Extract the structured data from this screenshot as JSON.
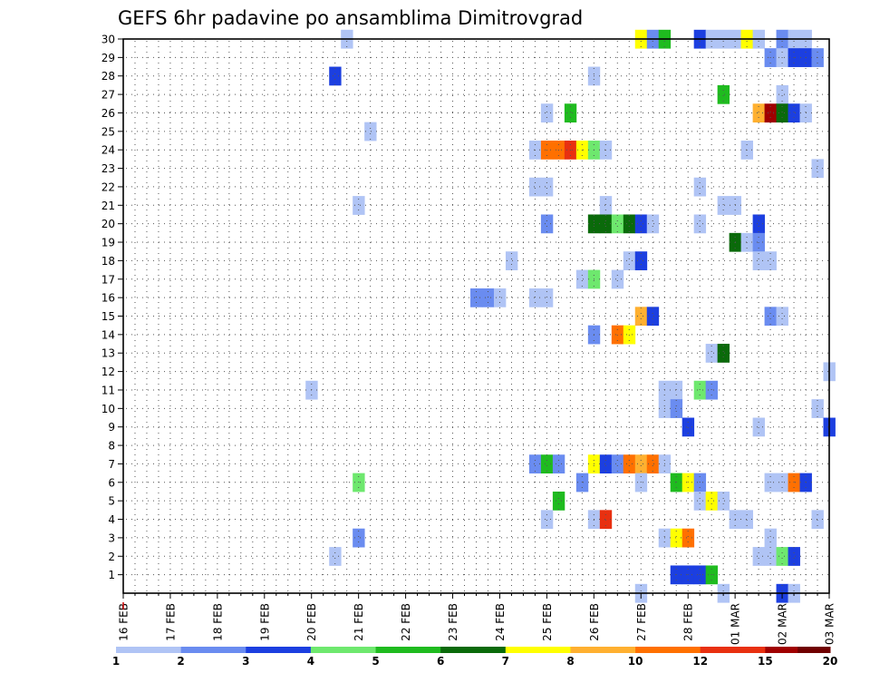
{
  "chart_data": {
    "type": "heatmap",
    "title": "GEFS 6hr padavine po ansamblima Dimitrovgrad",
    "xlabel": "",
    "ylabel": "",
    "x_tick_labels": [
      "16 FEB",
      "17 FEB",
      "18 FEB",
      "19 FEB",
      "20 FEB",
      "21 FEB",
      "22 FEB",
      "23 FEB",
      "24 FEB",
      "25 FEB",
      "26 FEB",
      "27 FEB",
      "28 FEB",
      "01 MAR",
      "02 MAR",
      "03 MAR"
    ],
    "x_unit": "6-hour step from 16 FEB 00Z",
    "xlim": [
      0,
      60
    ],
    "y_tick_labels": [
      "1",
      "2",
      "3",
      "4",
      "5",
      "6",
      "7",
      "8",
      "9",
      "10",
      "11",
      "12",
      "13",
      "14",
      "15",
      "16",
      "17",
      "18",
      "19",
      "20",
      "21",
      "22",
      "23",
      "24",
      "25",
      "26",
      "27",
      "28",
      "29",
      "30"
    ],
    "ylim": [
      0,
      30
    ],
    "grid": true,
    "legend": {
      "placement": "bottom",
      "boundary_labels": [
        "1",
        "2",
        "3",
        "4",
        "5",
        "6",
        "7",
        "8",
        "10",
        "12",
        "15",
        "20"
      ],
      "colors": [
        "#b0c4f5",
        "#b0c4f5",
        "#6a8cf0",
        "#6a8cf0",
        "#1c3fe0",
        "#1c3fe0",
        "#6ee86e",
        "#6ee86e",
        "#1fbb1f",
        "#1fbb1f",
        "#0a6a0a",
        "#0a6a0a",
        "#ffff00",
        "#ffff00",
        "#ffb030",
        "#ffb030",
        "#ff7000",
        "#ff7000",
        "#e83010",
        "#e83010",
        "#a00000",
        "#700000"
      ]
    },
    "level_colors": {
      "1": "#b0c4f5",
      "2": "#6a8cf0",
      "3": "#1c3fe0",
      "4": "#6ee86e",
      "5": "#1fbb1f",
      "6": "#0a6a0a",
      "7": "#ffff00",
      "8": "#ffb030",
      "9": "#ff7000",
      "10": "#e83010",
      "11": "#a00000",
      "12": "#700000"
    },
    "cells": [
      {
        "m": 30,
        "t": [
          [
            19,
            1
          ]
        ]
      },
      {
        "m": 30,
        "t": [
          [
            44,
            7
          ],
          [
            45,
            2
          ],
          [
            46,
            5
          ],
          [
            49,
            3
          ],
          [
            50,
            1
          ],
          [
            51,
            1
          ],
          [
            52,
            1
          ],
          [
            53,
            7
          ],
          [
            54,
            1
          ],
          [
            56,
            2
          ],
          [
            57,
            1
          ],
          [
            58,
            1
          ]
        ]
      },
      {
        "m": 29,
        "t": [
          [
            55,
            2
          ],
          [
            56,
            1
          ],
          [
            57,
            3
          ],
          [
            58,
            3
          ],
          [
            59,
            2
          ]
        ]
      },
      {
        "m": 28,
        "t": [
          [
            18,
            3
          ],
          [
            40,
            1
          ]
        ]
      },
      {
        "m": 27,
        "t": [
          [
            51,
            5
          ],
          [
            56,
            1
          ]
        ]
      },
      {
        "m": 26,
        "t": [
          [
            36,
            1
          ],
          [
            38,
            5
          ],
          [
            54,
            8
          ],
          [
            55,
            11
          ],
          [
            56,
            6
          ],
          [
            57,
            3
          ],
          [
            58,
            1
          ]
        ]
      },
      {
        "m": 25,
        "t": [
          [
            21,
            1
          ]
        ]
      },
      {
        "m": 24,
        "t": [
          [
            35,
            1
          ],
          [
            36,
            9
          ],
          [
            37,
            9
          ],
          [
            38,
            10
          ],
          [
            39,
            7
          ],
          [
            40,
            4
          ],
          [
            41,
            1
          ],
          [
            53,
            1
          ]
        ]
      },
      {
        "m": 23,
        "t": [
          [
            59,
            1
          ]
        ]
      },
      {
        "m": 22,
        "t": [
          [
            35,
            1
          ],
          [
            36,
            1
          ],
          [
            49,
            1
          ]
        ]
      },
      {
        "m": 21,
        "t": [
          [
            20,
            1
          ],
          [
            41,
            1
          ],
          [
            51,
            1
          ],
          [
            52,
            1
          ]
        ]
      },
      {
        "m": 20,
        "t": [
          [
            36,
            2
          ],
          [
            40,
            6
          ],
          [
            41,
            6
          ],
          [
            42,
            4
          ],
          [
            43,
            6
          ],
          [
            44,
            3
          ],
          [
            45,
            1
          ],
          [
            49,
            1
          ],
          [
            54,
            3
          ]
        ]
      },
      {
        "m": 19,
        "t": [
          [
            52,
            6
          ],
          [
            53,
            1
          ],
          [
            54,
            2
          ]
        ]
      },
      {
        "m": 18,
        "t": [
          [
            33,
            1
          ],
          [
            43,
            1
          ],
          [
            44,
            3
          ],
          [
            54,
            1
          ],
          [
            55,
            1
          ]
        ]
      },
      {
        "m": 17,
        "t": [
          [
            39,
            1
          ],
          [
            40,
            4
          ],
          [
            42,
            1
          ]
        ]
      },
      {
        "m": 16,
        "t": [
          [
            30,
            2
          ],
          [
            31,
            2
          ],
          [
            32,
            1
          ],
          [
            35,
            1
          ],
          [
            36,
            1
          ]
        ]
      },
      {
        "m": 15,
        "t": [
          [
            44,
            8
          ],
          [
            45,
            3
          ],
          [
            55,
            2
          ],
          [
            56,
            1
          ]
        ]
      },
      {
        "m": 14,
        "t": [
          [
            40,
            2
          ],
          [
            42,
            9
          ],
          [
            43,
            7
          ]
        ]
      },
      {
        "m": 13,
        "t": [
          [
            50,
            1
          ],
          [
            51,
            6
          ]
        ]
      },
      {
        "m": 12,
        "t": [
          [
            60,
            1
          ]
        ]
      },
      {
        "m": 11,
        "t": [
          [
            16,
            1
          ],
          [
            46,
            1
          ],
          [
            47,
            1
          ],
          [
            49,
            4
          ],
          [
            50,
            2
          ]
        ]
      },
      {
        "m": 10,
        "t": [
          [
            46,
            1
          ],
          [
            47,
            2
          ],
          [
            59,
            1
          ]
        ]
      },
      {
        "m": 9,
        "t": [
          [
            48,
            3
          ],
          [
            54,
            1
          ],
          [
            60,
            3
          ]
        ]
      },
      {
        "m": 7,
        "t": [
          [
            35,
            2
          ],
          [
            36,
            5
          ],
          [
            37,
            2
          ],
          [
            40,
            7
          ],
          [
            41,
            3
          ],
          [
            42,
            2
          ],
          [
            43,
            9
          ],
          [
            44,
            8
          ],
          [
            45,
            9
          ],
          [
            46,
            1
          ]
        ]
      },
      {
        "m": 6,
        "t": [
          [
            20,
            4
          ],
          [
            39,
            2
          ],
          [
            44,
            1
          ],
          [
            47,
            5
          ],
          [
            48,
            7
          ],
          [
            49,
            2
          ],
          [
            55,
            1
          ],
          [
            56,
            1
          ],
          [
            57,
            9
          ],
          [
            58,
            3
          ]
        ]
      },
      {
        "m": 5,
        "t": [
          [
            37,
            5
          ],
          [
            49,
            1
          ],
          [
            50,
            7
          ],
          [
            51,
            1
          ]
        ]
      },
      {
        "m": 4,
        "t": [
          [
            36,
            1
          ],
          [
            40,
            1
          ],
          [
            41,
            10
          ],
          [
            52,
            1
          ],
          [
            53,
            1
          ],
          [
            59,
            1
          ]
        ]
      },
      {
        "m": 3,
        "t": [
          [
            20,
            2
          ],
          [
            46,
            1
          ],
          [
            47,
            7
          ],
          [
            48,
            9
          ],
          [
            55,
            1
          ]
        ]
      },
      {
        "m": 2,
        "t": [
          [
            18,
            1
          ],
          [
            54,
            1
          ],
          [
            55,
            1
          ],
          [
            56,
            4
          ],
          [
            57,
            3
          ]
        ]
      },
      {
        "m": 1,
        "t": [
          [
            47,
            3
          ],
          [
            48,
            3
          ],
          [
            49,
            3
          ],
          [
            50,
            5
          ]
        ]
      },
      {
        "m": 0,
        "t": [
          [
            44,
            1
          ],
          [
            51,
            1
          ],
          [
            56,
            3
          ],
          [
            57,
            1
          ]
        ]
      }
    ]
  }
}
